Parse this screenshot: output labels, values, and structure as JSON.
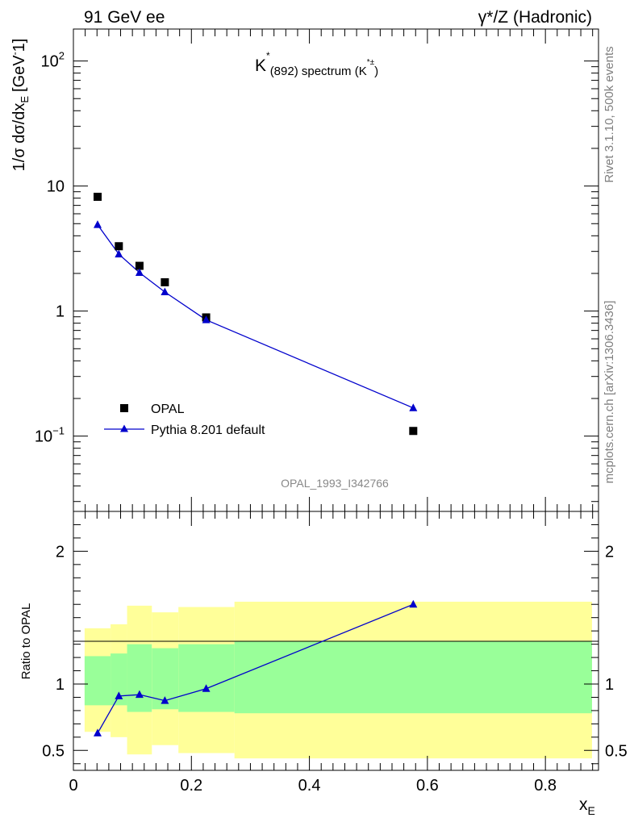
{
  "header": {
    "left_label": "91 GeV ee",
    "right_label": "γ*/Z (Hadronic)"
  },
  "side_labels": {
    "rivet": "Rivet 3.1.10,  500k events",
    "source": "mcplots.cern.ch [arXiv:1306.3436]"
  },
  "colors": {
    "mc": "#0000cc",
    "data": "#000000",
    "band_inner": "#99ff99",
    "band_outer": "#ffff99",
    "watermark": "#888888"
  },
  "chart_data": [
    {
      "type": "scatter",
      "title": {
        "main": "K",
        "main_sup": "*",
        "sub": "(892) spectrum (K",
        "sub_sup": "*±",
        "close": ")"
      },
      "ylabel": {
        "text": "1/σ dσ/dx",
        "sub": "E",
        "unit": "[GeV",
        "unit_sup": "-",
        "unit_end": "1]"
      },
      "yscale": "log",
      "ylim": [
        0.025,
        180
      ],
      "xlim": [
        0,
        0.89
      ],
      "y_ticks": [
        {
          "value": 0.1,
          "label": "10",
          "sup": "−1"
        },
        {
          "value": 1,
          "label": "1",
          "sup": ""
        },
        {
          "value": 10,
          "label": "10",
          "sup": ""
        },
        {
          "value": 100,
          "label": "10",
          "sup": "2"
        }
      ],
      "watermark": "OPAL_1993_I342766",
      "legend_position": "lower-left",
      "series": [
        {
          "name": "OPAL",
          "marker": "square",
          "x": [
            0.041,
            0.077,
            0.112,
            0.155,
            0.225,
            0.576
          ],
          "y": [
            8.2,
            3.3,
            2.3,
            1.7,
            0.89,
            0.11
          ]
        },
        {
          "name": "Pythia 8.201 default",
          "marker": "triangle",
          "x": [
            0.041,
            0.077,
            0.112,
            0.155,
            0.225,
            0.576
          ],
          "y": [
            4.9,
            2.85,
            2.03,
            1.42,
            0.85,
            0.168
          ]
        }
      ]
    },
    {
      "type": "line",
      "ylabel": "Ratio to OPAL",
      "xlabel": "x",
      "xlabel_sub": "E",
      "xlim": [
        0,
        0.89
      ],
      "ylim": [
        0.35,
        2.3
      ],
      "x_ticks": [
        0,
        0.2,
        0.4,
        0.6,
        0.8
      ],
      "x_tick_labels": [
        "0",
        "0.2",
        "0.4",
        "0.6",
        "0.8"
      ],
      "y_ticks": [
        0.5,
        1,
        2
      ],
      "y_tick_labels": [
        "0.5",
        "1",
        "2"
      ],
      "bands": [
        {
          "x0": 0.019,
          "x1": 0.063,
          "inner": [
            0.84,
            1.21
          ],
          "outer": [
            0.64,
            1.42
          ]
        },
        {
          "x0": 0.063,
          "x1": 0.091,
          "inner": [
            0.84,
            1.23
          ],
          "outer": [
            0.6,
            1.45
          ]
        },
        {
          "x0": 0.091,
          "x1": 0.133,
          "inner": [
            0.79,
            1.3
          ],
          "outer": [
            0.47,
            1.59
          ]
        },
        {
          "x0": 0.133,
          "x1": 0.178,
          "inner": [
            0.81,
            1.27
          ],
          "outer": [
            0.54,
            1.54
          ]
        },
        {
          "x0": 0.178,
          "x1": 0.273,
          "inner": [
            0.79,
            1.3
          ],
          "outer": [
            0.48,
            1.58
          ]
        },
        {
          "x0": 0.273,
          "x1": 0.879,
          "inner": [
            0.78,
            1.32
          ],
          "outer": [
            0.44,
            1.62
          ]
        }
      ],
      "series": [
        {
          "marker": "triangle",
          "x": [
            0.041,
            0.077,
            0.112,
            0.155,
            0.225,
            0.576
          ],
          "y": [
            0.63,
            0.91,
            0.92,
            0.875,
            0.965,
            1.6
          ]
        }
      ]
    }
  ]
}
